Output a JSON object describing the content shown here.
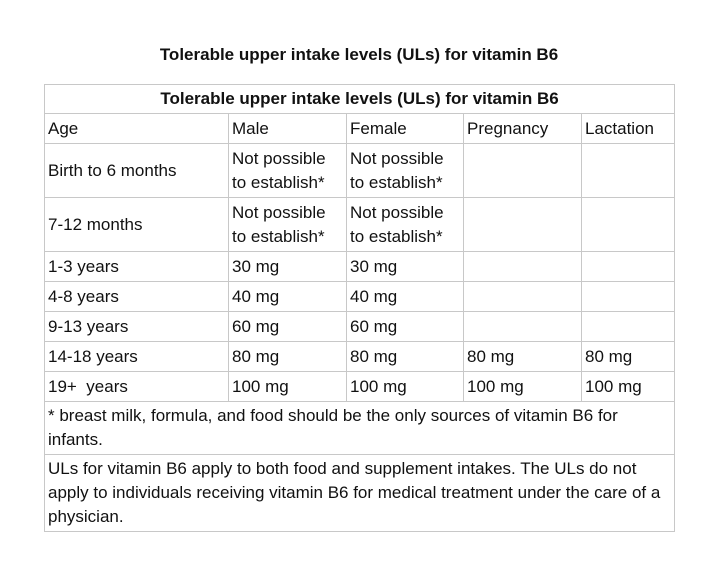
{
  "title": "Tolerable upper intake levels (ULs) for vitamin B6",
  "table": {
    "caption": "Tolerable upper intake levels (ULs) for vitamin B6",
    "headers": [
      "Age",
      "Male",
      "Female",
      "Pregnancy",
      "Lactation"
    ],
    "rows": [
      {
        "age": "Birth to 6 months",
        "male": "Not possible to establish*",
        "female": "Not possible to establish*"
      },
      {
        "age": "7-12 months",
        "male": "Not possible to establish*",
        "female": "Not possible to establish*"
      },
      {
        "age": "1-3 years",
        "male": "30 mg",
        "female": "30 mg"
      },
      {
        "age": "4-8 years",
        "male": "40 mg",
        "female": "40 mg"
      },
      {
        "age": "9-13 years",
        "male": "60 mg",
        "female": "60 mg"
      },
      {
        "age": "14-18 years",
        "male": "80 mg",
        "female": "80 mg",
        "pregnancy": "80 mg",
        "lactation": "80 mg"
      },
      {
        "age": "19+  years",
        "male": "100 mg",
        "female": "100 mg",
        "pregnancy": "100 mg",
        "lactation": "100 mg"
      }
    ],
    "notes": [
      "* breast milk, formula, and food should be the only sources of vitamin B6 for infants.",
      "ULs for vitamin B6 apply to both food and supplement intakes. The ULs do not apply to individuals receiving vitamin B6 for medical treatment under the care of a physician."
    ]
  }
}
